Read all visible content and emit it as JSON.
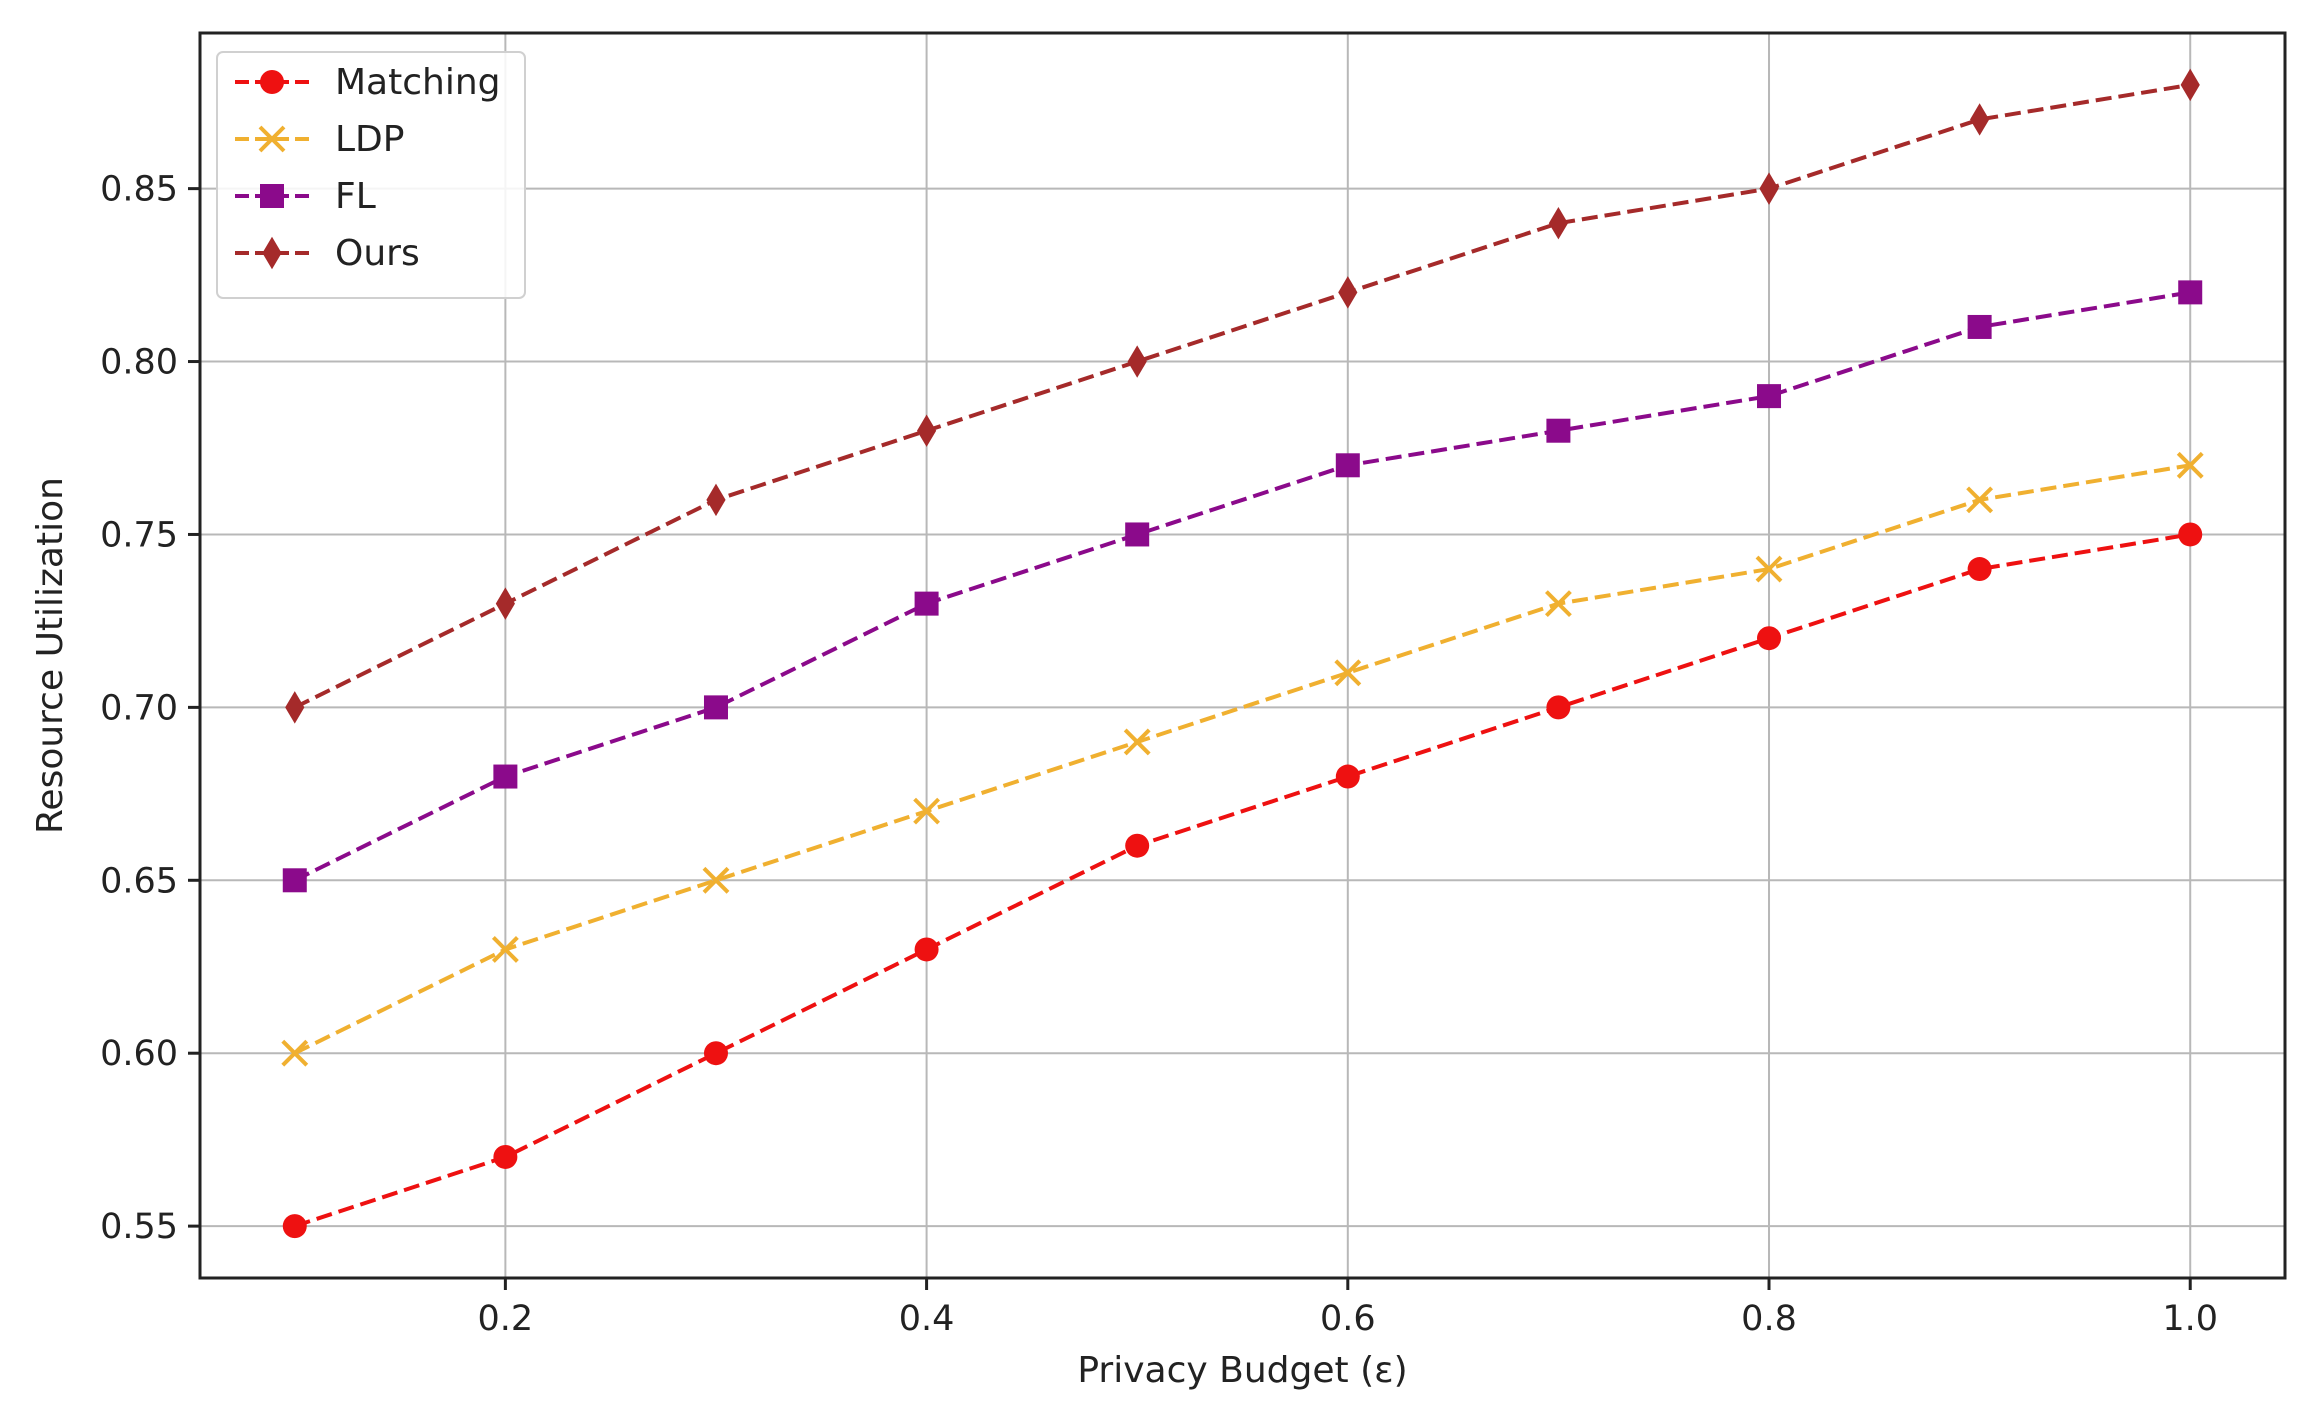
{
  "chart_data": {
    "type": "line",
    "title": "",
    "xlabel": "Privacy Budget (ε)",
    "ylabel": "Resource Utilization",
    "x": [
      0.1,
      0.2,
      0.3,
      0.4,
      0.5,
      0.6,
      0.7,
      0.8,
      0.9,
      1.0
    ],
    "xlim": [
      0.055,
      1.045
    ],
    "ylim": [
      0.535,
      0.895
    ],
    "xticks": [
      0.2,
      0.4,
      0.6,
      0.8,
      1.0
    ],
    "xtick_labels": [
      "0.2",
      "0.4",
      "0.6",
      "0.8",
      "1.0"
    ],
    "yticks": [
      0.55,
      0.6,
      0.65,
      0.7,
      0.75,
      0.8,
      0.85
    ],
    "ytick_labels": [
      "0.55",
      "0.60",
      "0.65",
      "0.70",
      "0.75",
      "0.80",
      "0.85"
    ],
    "grid": true,
    "legend_position": "top-left",
    "series": [
      {
        "name": "Matching",
        "color": "#ee1111",
        "marker": "circle",
        "values": [
          0.55,
          0.57,
          0.6,
          0.63,
          0.66,
          0.68,
          0.7,
          0.72,
          0.74,
          0.75
        ]
      },
      {
        "name": "LDP",
        "color": "#f0b030",
        "marker": "x",
        "values": [
          0.6,
          0.63,
          0.65,
          0.67,
          0.69,
          0.71,
          0.73,
          0.74,
          0.76,
          0.77
        ]
      },
      {
        "name": "FL",
        "color": "#8b0a8b",
        "marker": "square",
        "values": [
          0.65,
          0.68,
          0.7,
          0.73,
          0.75,
          0.77,
          0.78,
          0.79,
          0.81,
          0.82
        ]
      },
      {
        "name": "Ours",
        "color": "#a52a2a",
        "marker": "diamond",
        "values": [
          0.7,
          0.73,
          0.76,
          0.78,
          0.8,
          0.82,
          0.84,
          0.85,
          0.87,
          0.88
        ]
      }
    ]
  }
}
